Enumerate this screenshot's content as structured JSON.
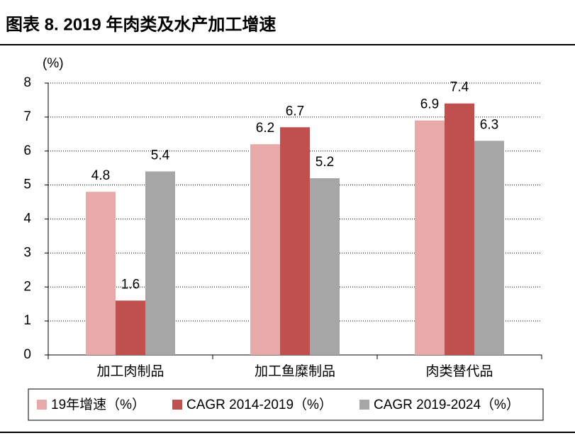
{
  "chart_data": {
    "type": "bar",
    "title": "图表 8. 2019 年肉类及水产加工增速",
    "y_axis_label": "(%)",
    "categories": [
      "加工肉制品",
      "加工鱼糜制品",
      "肉类替代品"
    ],
    "series": [
      {
        "name": "19年增速（%）",
        "color": "#e8a9a9",
        "values": [
          4.8,
          6.2,
          6.9
        ]
      },
      {
        "name": "CAGR 2014-2019（%）",
        "color": "#c0504d",
        "values": [
          1.6,
          6.7,
          7.4
        ]
      },
      {
        "name": "CAGR 2019-2024（%）",
        "color": "#a6a6a6",
        "values": [
          5.4,
          5.2,
          6.3
        ]
      }
    ],
    "ylim": [
      0,
      8
    ],
    "yticks": [
      0,
      1,
      2,
      3,
      4,
      5,
      6,
      7,
      8
    ],
    "grid": true
  }
}
